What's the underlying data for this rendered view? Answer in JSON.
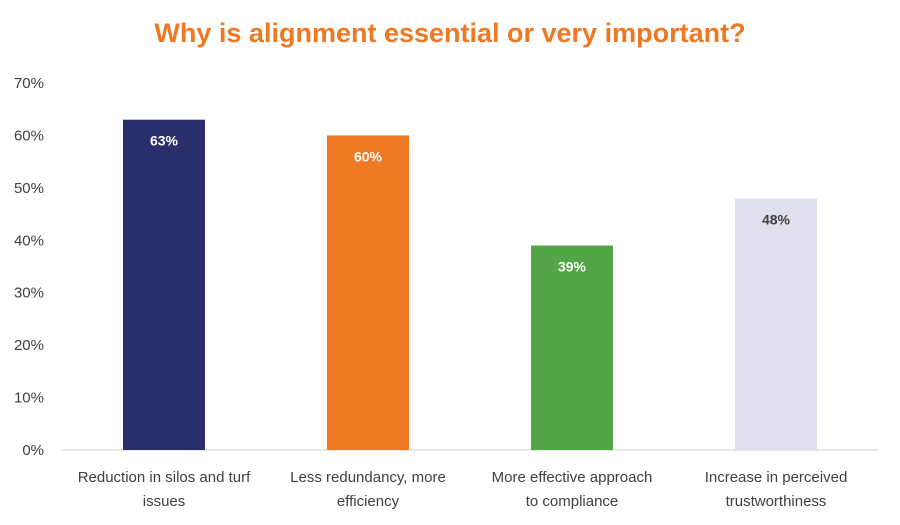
{
  "chart_data": {
    "type": "bar",
    "title": "Why is alignment essential or very important?",
    "categories": [
      [
        "Reduction in silos and turf",
        "issues"
      ],
      [
        "Less redundancy, more",
        "efficiency"
      ],
      [
        "More effective approach",
        "to compliance"
      ],
      [
        "Increase in perceived",
        "trustworthiness"
      ]
    ],
    "values": [
      63,
      60,
      39,
      48
    ],
    "value_labels": [
      "63%",
      "60%",
      "39%",
      "48%"
    ],
    "bar_colors": [
      "#2a2f6b",
      "#ef7823",
      "#53a548",
      "#dfe1ee"
    ],
    "label_colors": [
      "#ffffff",
      "#ffffff",
      "#ffffff",
      "#404040"
    ],
    "ylim": [
      0,
      70
    ],
    "y_ticks": [
      "0%",
      "10%",
      "20%",
      "30%",
      "40%",
      "50%",
      "60%",
      "70%"
    ],
    "grid": false,
    "legend": "none"
  }
}
